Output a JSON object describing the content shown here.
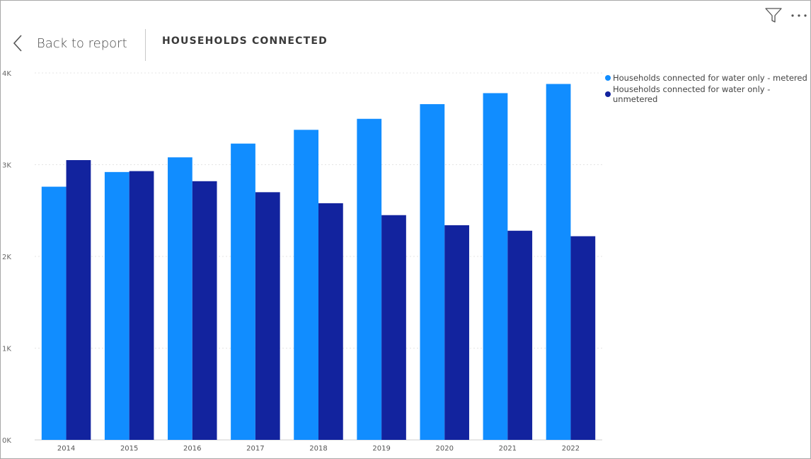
{
  "header": {
    "back_label": "Back to report",
    "title": "HOUSEHOLDS CONNECTED"
  },
  "icons": {
    "back": "chevron-left-icon",
    "filter": "filter-icon",
    "more": "more-options-icon"
  },
  "chart_data": {
    "type": "bar",
    "categories": [
      "2014",
      "2015",
      "2016",
      "2017",
      "2018",
      "2019",
      "2020",
      "2021",
      "2022"
    ],
    "series": [
      {
        "name": "Households connected for water only - metered",
        "color": "#118dff",
        "values": [
          2760,
          2920,
          3080,
          3230,
          3380,
          3500,
          3660,
          3780,
          3880
        ]
      },
      {
        "name": "Households connected for water only - unmetered",
        "color": "#12239e",
        "values": [
          3050,
          2930,
          2820,
          2700,
          2580,
          2450,
          2340,
          2280,
          2220
        ]
      }
    ],
    "y_ticks": [
      "0K",
      "1K",
      "2K",
      "3K",
      "4K"
    ],
    "ylim": [
      0,
      4000
    ],
    "gridlines": true,
    "legend_position": "right"
  }
}
